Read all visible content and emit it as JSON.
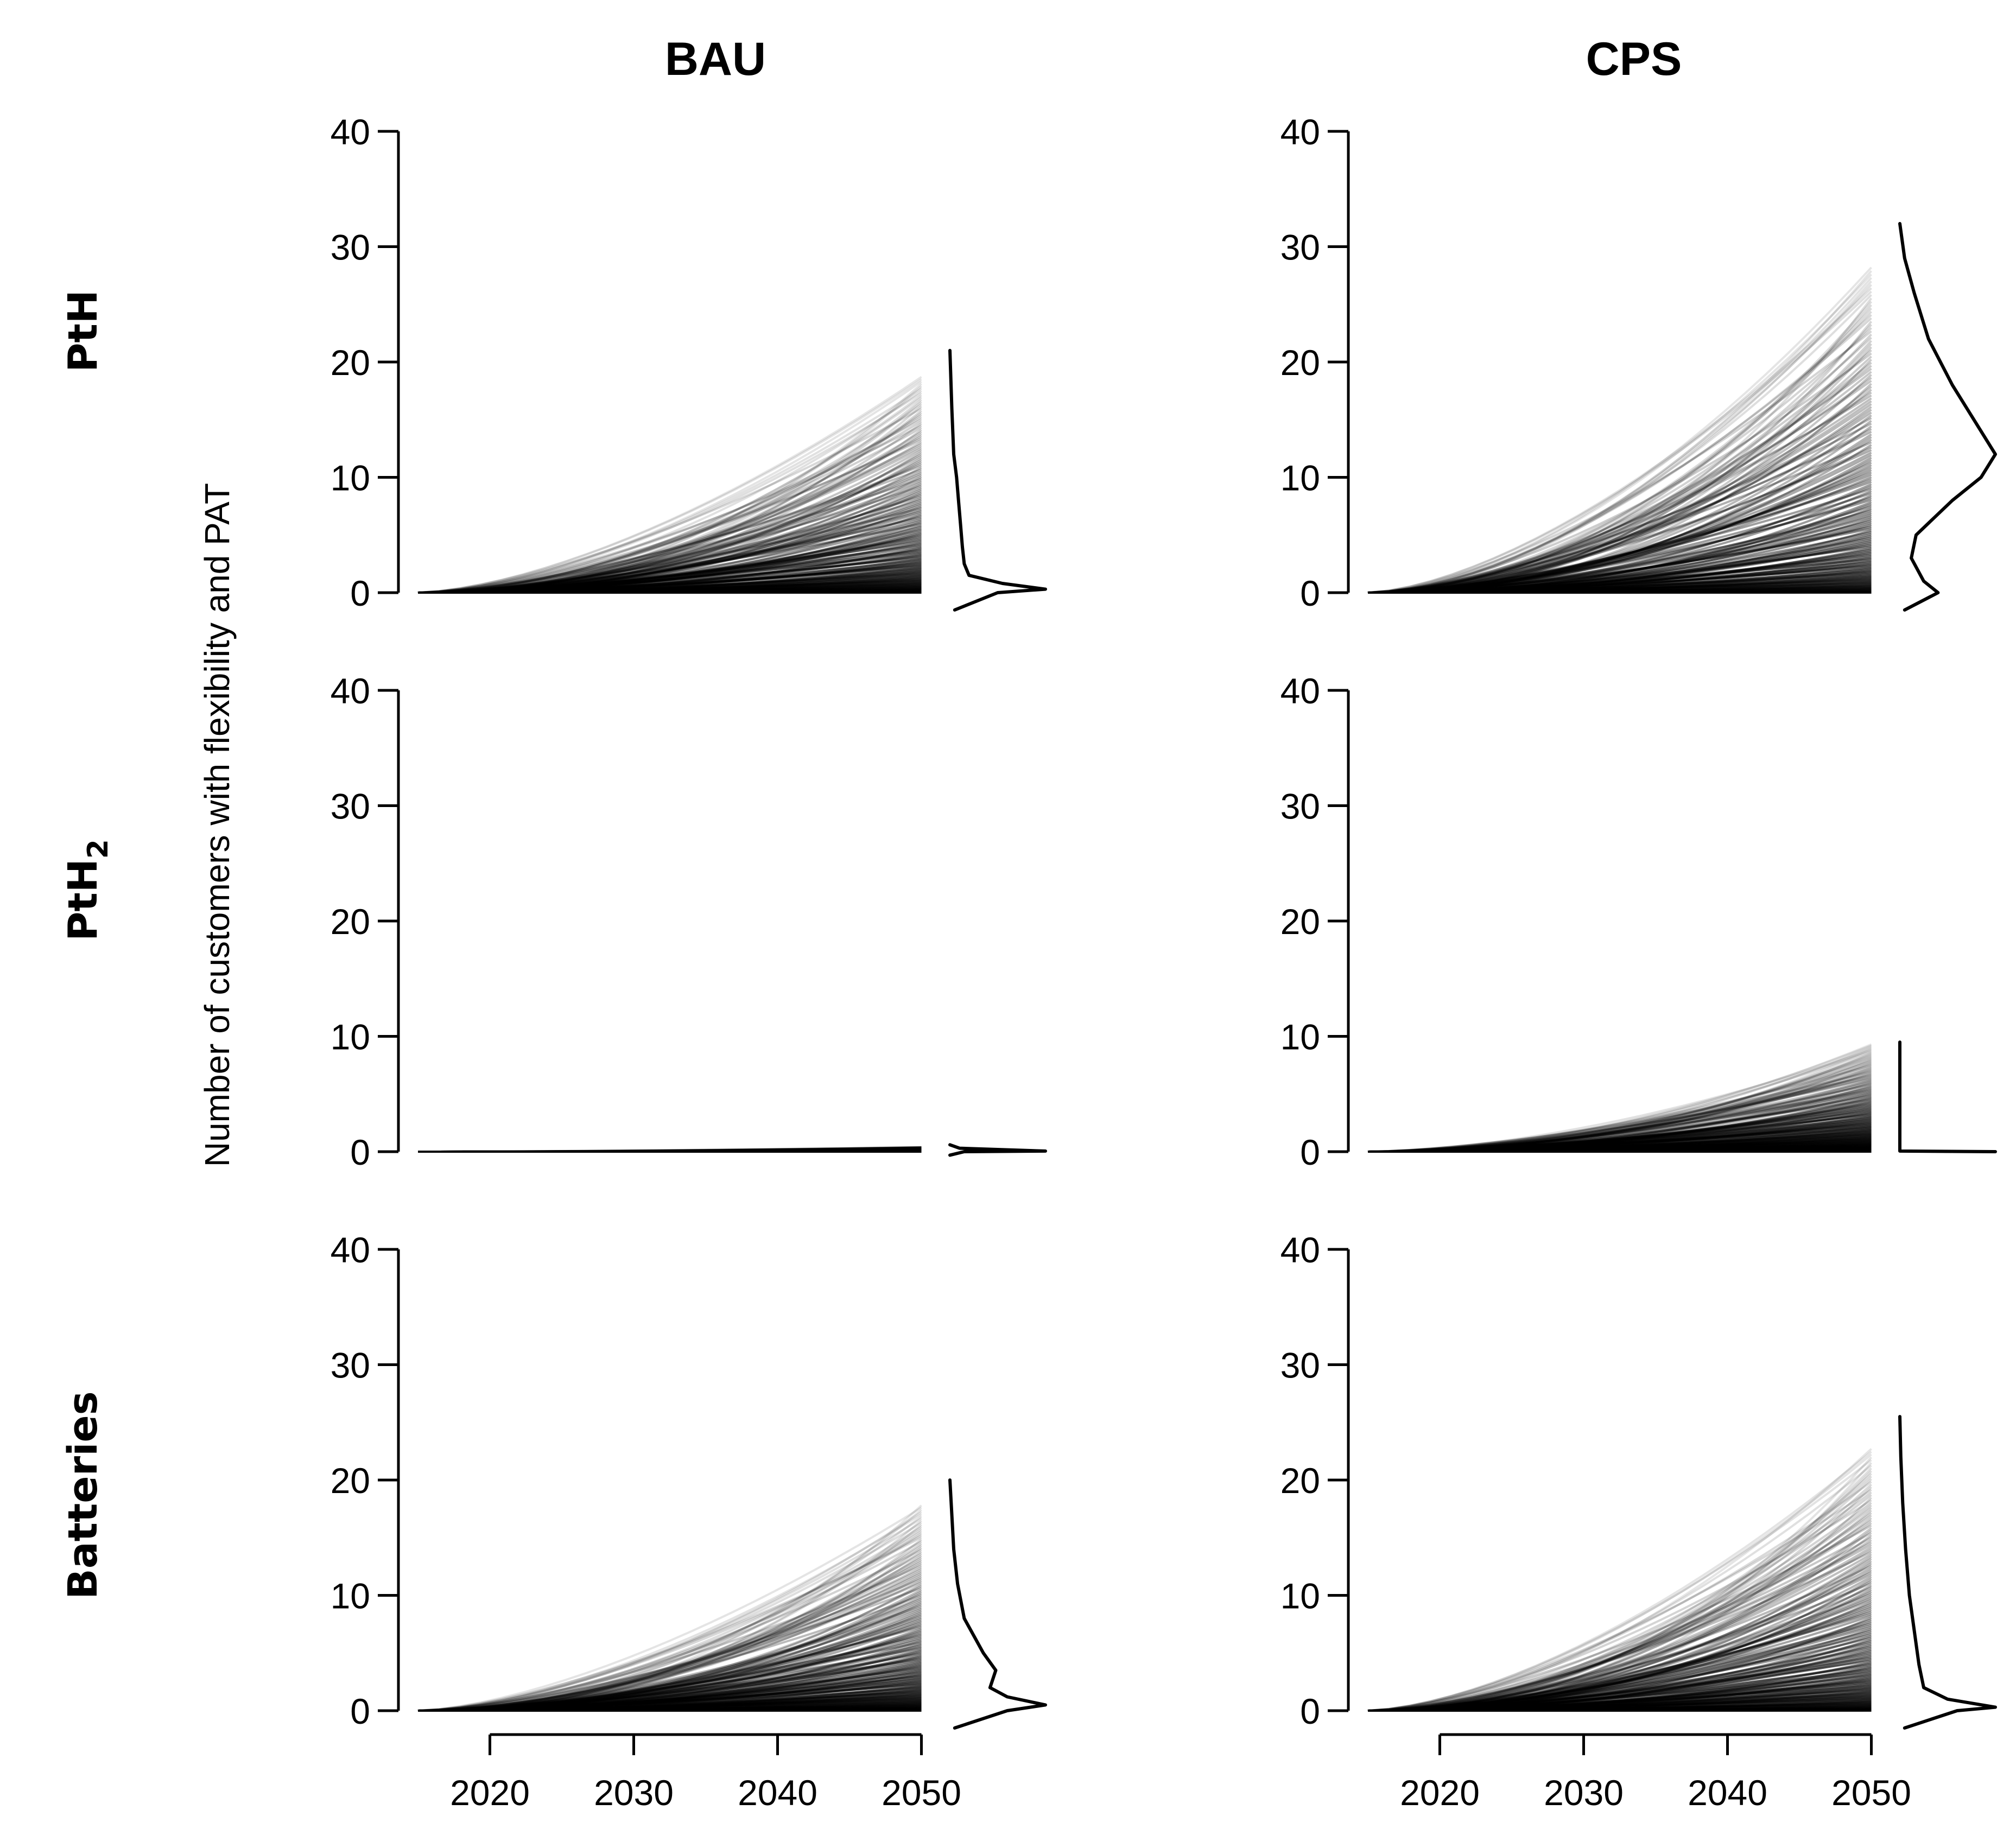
{
  "chart_data": {
    "type": "line",
    "ylabel": "Number of customers with flexibility and PAT",
    "columns": [
      "BAU",
      "CPS"
    ],
    "rows": [
      {
        "name": "PtH",
        "subscript": ""
      },
      {
        "name": "PtH",
        "subscript": "2"
      },
      {
        "name": "Batteries",
        "subscript": ""
      }
    ],
    "x": {
      "start": 2015,
      "end": 2050,
      "ticks": [
        2020,
        2030,
        2040,
        2050
      ],
      "tick_labels": [
        "2020",
        "2030",
        "2040",
        "2050"
      ]
    },
    "y": {
      "ylim": [
        0,
        40
      ],
      "ticks": [
        0,
        10,
        20,
        30,
        40
      ],
      "tick_labels": [
        "0",
        "10",
        "20",
        "30",
        "40"
      ]
    },
    "colors": {
      "line": "#000000",
      "background": "#ffffff"
    },
    "panels": [
      {
        "column": "BAU",
        "row": "PtH",
        "max_2050": 18.7,
        "mode_2050": 0.3,
        "density": [
          [
            -1.5,
            0.05
          ],
          [
            0,
            0.5
          ],
          [
            0.3,
            1.0
          ],
          [
            0.8,
            0.55
          ],
          [
            1.5,
            0.2
          ],
          [
            2.5,
            0.15
          ],
          [
            4,
            0.13
          ],
          [
            6,
            0.11
          ],
          [
            8,
            0.09
          ],
          [
            10,
            0.07
          ],
          [
            12,
            0.04
          ],
          [
            16,
            0.02
          ],
          [
            21,
            0.0
          ]
        ]
      },
      {
        "column": "CPS",
        "row": "PtH",
        "max_2050": 28.2,
        "mode_2050": 12.0,
        "density": [
          [
            -1.5,
            0.05
          ],
          [
            0,
            0.4
          ],
          [
            1,
            0.25
          ],
          [
            3,
            0.12
          ],
          [
            5,
            0.17
          ],
          [
            8,
            0.55
          ],
          [
            10,
            0.85
          ],
          [
            12,
            1.0
          ],
          [
            14,
            0.85
          ],
          [
            18,
            0.55
          ],
          [
            22,
            0.3
          ],
          [
            26,
            0.15
          ],
          [
            29,
            0.05
          ],
          [
            32,
            0.0
          ]
        ]
      },
      {
        "column": "BAU",
        "row": "PtH2",
        "max_2050": 0.4,
        "mode_2050": 0.0,
        "density": [
          [
            -0.3,
            0.0
          ],
          [
            0,
            0.15
          ],
          [
            0.05,
            1.0
          ],
          [
            0.3,
            0.1
          ],
          [
            0.6,
            0.0
          ]
        ]
      },
      {
        "column": "CPS",
        "row": "PtH2",
        "max_2050": 9.3,
        "mode_2050": 0.0,
        "density": [
          [
            0,
            1.0
          ],
          [
            0.05,
            0.0
          ],
          [
            9.5,
            0.0
          ]
        ]
      },
      {
        "column": "BAU",
        "row": "Batteries",
        "max_2050": 17.8,
        "mode_2050": 0.5,
        "density": [
          [
            -1.5,
            0.05
          ],
          [
            0,
            0.6
          ],
          [
            0.5,
            1.0
          ],
          [
            1.2,
            0.6
          ],
          [
            2,
            0.42
          ],
          [
            3.5,
            0.48
          ],
          [
            5,
            0.35
          ],
          [
            8,
            0.15
          ],
          [
            11,
            0.08
          ],
          [
            14,
            0.04
          ],
          [
            17,
            0.02
          ],
          [
            20,
            0.0
          ]
        ]
      },
      {
        "column": "CPS",
        "row": "Batteries",
        "max_2050": 22.7,
        "mode_2050": 0.3,
        "density": [
          [
            -1.5,
            0.05
          ],
          [
            0,
            0.6
          ],
          [
            0.3,
            1.0
          ],
          [
            1,
            0.5
          ],
          [
            2,
            0.25
          ],
          [
            4,
            0.2
          ],
          [
            7,
            0.15
          ],
          [
            10,
            0.1
          ],
          [
            14,
            0.06
          ],
          [
            18,
            0.03
          ],
          [
            22,
            0.01
          ],
          [
            25.5,
            0.0
          ]
        ]
      }
    ]
  }
}
